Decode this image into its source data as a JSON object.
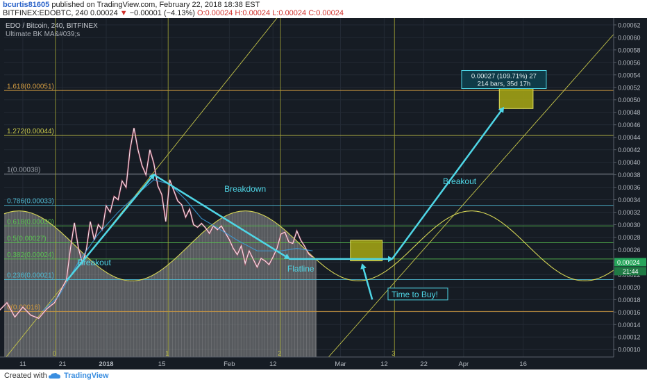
{
  "header": {
    "author": "bcurtis81605",
    "published_text": "published on TradingView.com, February 22, 2018 18:38 EST",
    "symbol": "BITFINEX:EDOBTC, 240",
    "last": "0.00024",
    "change": "−0.00001 (−4.13%)",
    "ohlc": "O:0.00024 H:0.00024 L:0.00024 C:0.00024"
  },
  "legend": {
    "title": "EDO / Bitcoin, 240, BITFINEX",
    "indicator": "Ultimate BK MA&#039;s"
  },
  "footer": {
    "created_with": "Created with",
    "brand": "TradingView"
  },
  "colors": {
    "background": "#161c24",
    "arrow": "#4fd6e6",
    "fib_yellow": "#d4d455",
    "fib_orange": "#e0a040",
    "box": "#a8a814",
    "volume": "#a0a0a0"
  },
  "chart_data": {
    "type": "line",
    "title": "EDO / Bitcoin, 240, BITFINEX",
    "y_axis_ticks": [
      "0.00062",
      "0.00060",
      "0.00058",
      "0.00056",
      "0.00054",
      "0.00052",
      "0.00050",
      "0.00048",
      "0.00046",
      "0.00044",
      "0.00042",
      "0.00040",
      "0.00038",
      "0.00036",
      "0.00034",
      "0.00032",
      "0.00030",
      "0.00028",
      "0.00026",
      "0.00024",
      "0.00022",
      "0.00020",
      "0.00018",
      "0.00016",
      "0.00014",
      "0.00012",
      "0.00010"
    ],
    "ylim": [
      8.8e-05,
      0.000631
    ],
    "x_ticks": [
      {
        "label": "11",
        "day": 11
      },
      {
        "label": "21",
        "day": 21
      },
      {
        "label": "2018",
        "day": 32
      },
      {
        "label": "15",
        "day": 46
      },
      {
        "label": "Feb",
        "day": 63
      },
      {
        "label": "12",
        "day": 74
      },
      {
        "label": "Mar",
        "day": 91
      },
      {
        "label": "12",
        "day": 102
      },
      {
        "label": "22",
        "day": 112
      },
      {
        "label": "Apr",
        "day": 122
      },
      {
        "label": "16",
        "day": 137
      }
    ],
    "price_label": "0.00024",
    "time_label": "21:44",
    "fib_levels": [
      {
        "label": "1.618(0.00051)",
        "value": 0.000515
      },
      {
        "label": "1.272(0.00044)",
        "value": 0.000443
      },
      {
        "label": "1(0.00038)",
        "value": 0.000381
      },
      {
        "label": "0.786(0.00033)",
        "value": 0.000331
      },
      {
        "label": "0.618(0.00030)",
        "value": 0.000298
      },
      {
        "label": "0.5(0.00027)",
        "value": 0.000271
      },
      {
        "label": "0.382(0.00024)",
        "value": 0.000245
      },
      {
        "label": "0.236(0.00021)",
        "value": 0.000212
      },
      {
        "label": "0(0.00016)",
        "value": 0.000161
      }
    ],
    "cycle_markers": [
      {
        "label": "0",
        "day": 19.2
      },
      {
        "label": "1",
        "day": 47.6
      },
      {
        "label": "2",
        "day": 75.9
      },
      {
        "label": "3",
        "day": 104.6
      }
    ],
    "annotations": [
      {
        "text": "Breakout",
        "day": 29,
        "value": 0.000235
      },
      {
        "text": "Breakdown",
        "day": 67,
        "value": 0.000353
      },
      {
        "text": "Flatline",
        "day": 81,
        "value": 0.000225
      },
      {
        "text": "Breakout",
        "day": 121,
        "value": 0.000365
      }
    ],
    "callout_time_to_buy": "Time to Buy!",
    "measure_label": {
      "line1": "0.00027 (109.71%) 27",
      "line2": "214 bars, 35d 17h"
    },
    "arrows": [
      {
        "from": [
          22,
          0.00021
        ],
        "to": [
          44,
          0.00038
        ]
      },
      {
        "from": [
          44,
          0.00038
        ],
        "to": [
          78,
          0.000246
        ]
      },
      {
        "from": [
          78,
          0.000245
        ],
        "to": [
          104,
          0.000245
        ]
      },
      {
        "from": [
          104,
          0.000245
        ],
        "to": [
          132,
          0.000487
        ]
      },
      {
        "from": [
          99,
          0.00018
        ],
        "to": [
          96.5,
          0.000236
        ]
      }
    ],
    "boxes": [
      {
        "day_start": 93.5,
        "day_end": 101.5,
        "value_low": 0.000242,
        "value_high": 0.000275
      },
      {
        "day_start": 131,
        "day_end": 139.5,
        "value_low": 0.000486,
        "value_high": 0.00052
      }
    ],
    "price_series": [
      [
        1,
        0.00017
      ],
      [
        3,
        0.000182
      ],
      [
        5,
        0.000162
      ],
      [
        7,
        0.000175
      ],
      [
        9,
        0.000152
      ],
      [
        11,
        0.000168
      ],
      [
        13,
        0.000155
      ],
      [
        15,
        0.00015
      ],
      [
        17,
        0.000165
      ],
      [
        19,
        0.000175
      ],
      [
        21,
        0.0002
      ],
      [
        22,
        0.000212
      ],
      [
        23,
        0.000262
      ],
      [
        24,
        0.000303
      ],
      [
        25,
        0.000262
      ],
      [
        26,
        0.000238
      ],
      [
        27,
        0.00026
      ],
      [
        28,
        0.000305
      ],
      [
        29,
        0.000275
      ],
      [
        30,
        0.0003
      ],
      [
        31,
        0.000292
      ],
      [
        32,
        0.00033
      ],
      [
        33,
        0.00032
      ],
      [
        34,
        0.000345
      ],
      [
        35,
        0.00034
      ],
      [
        36,
        0.00037
      ],
      [
        37,
        0.00036
      ],
      [
        38,
        0.00042
      ],
      [
        39,
        0.000455
      ],
      [
        40,
        0.00042
      ],
      [
        41,
        0.000395
      ],
      [
        42,
        0.00038
      ],
      [
        43,
        0.00042
      ],
      [
        44,
        0.000398
      ],
      [
        45,
        0.000362
      ],
      [
        46,
        0.000348
      ],
      [
        47,
        0.000305
      ],
      [
        48,
        0.000372
      ],
      [
        49,
        0.000355
      ],
      [
        50,
        0.000338
      ],
      [
        51,
        0.000332
      ],
      [
        52,
        0.000312
      ],
      [
        53,
        0.000325
      ],
      [
        54,
        0.0003
      ],
      [
        55,
        0.000296
      ],
      [
        56,
        0.000302
      ],
      [
        57,
        0.000295
      ],
      [
        58,
        0.000286
      ],
      [
        59,
        0.000298
      ],
      [
        60,
        0.000292
      ],
      [
        61,
        0.000298
      ],
      [
        62,
        0.000287
      ],
      [
        63,
        0.000276
      ],
      [
        64,
        0.000262
      ],
      [
        65,
        0.000252
      ],
      [
        66,
        0.000266
      ],
      [
        67,
        0.000238
      ],
      [
        68,
        0.000258
      ],
      [
        69,
        0.000245
      ],
      [
        70,
        0.000232
      ],
      [
        71,
        0.000246
      ],
      [
        72,
        0.000242
      ],
      [
        73,
        0.000236
      ],
      [
        74,
        0.000248
      ],
      [
        75,
        0.000262
      ],
      [
        76,
        0.000285
      ],
      [
        77,
        0.000288
      ],
      [
        78,
        0.000272
      ],
      [
        79,
        0.00027
      ],
      [
        80,
        0.00029
      ],
      [
        81,
        0.000275
      ],
      [
        82,
        0.000265
      ],
      [
        83,
        0.000253
      ],
      [
        84,
        0.000248
      ]
    ],
    "ma_series": [
      [
        16,
        0.000162
      ],
      [
        20,
        0.000185
      ],
      [
        25,
        0.00024
      ],
      [
        30,
        0.000285
      ],
      [
        35,
        0.00032
      ],
      [
        40,
        0.00035
      ],
      [
        44,
        0.000372
      ],
      [
        48,
        0.000365
      ],
      [
        52,
        0.00034
      ],
      [
        56,
        0.00031
      ],
      [
        60,
        0.000295
      ],
      [
        65,
        0.000275
      ],
      [
        70,
        0.000258
      ],
      [
        76,
        0.000258
      ],
      [
        80,
        0.000262
      ],
      [
        84,
        0.000258
      ]
    ],
    "cycle_curve": {
      "amplitude": 5.6e-05,
      "center": 0.000266,
      "period": 57,
      "peak_day": 67
    },
    "volume_profile_end_day": 85
  }
}
